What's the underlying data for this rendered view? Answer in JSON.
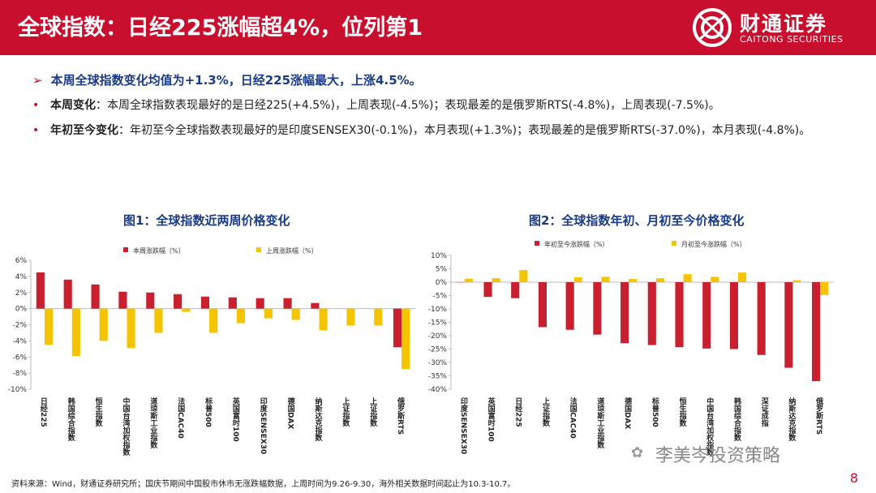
{
  "header": {
    "title": "全球指数：日经225涨幅超4%，位列第1",
    "logo_cn": "财通证券",
    "logo_en": "CAITONG SECURITIES"
  },
  "summary": {
    "headline": "本周全球指数变化均值为+1.3%，日经225涨幅最大，上涨4.5%。",
    "weekly_label": "本周变化",
    "weekly_text": "：本周全球指数表现最好的是日经225(+4.5%)，上周表现(-4.5%)；表现最差的是俄罗斯RTS(-4.8%)，上周表现(-7.5%)。",
    "ytd_label": "年初至今变化",
    "ytd_text": "：年初至今全球指数表现最好的是印度SENSEX30(-0.1%)，本月表现(+1.3%)；表现最差的是俄罗斯RTS(-37.0%)，本月表现(-4.8%)。"
  },
  "colors": {
    "red": "#c8202e",
    "gold": "#f5c400",
    "brand": "#c8102e",
    "title_blue": "#1a3a8a"
  },
  "chart_data": [
    {
      "type": "bar",
      "title": "图1：全球指数近两周价格变化",
      "categories": [
        "日经225",
        "韩国综合指数",
        "恒生指数",
        "中国台湾加权指数",
        "道琼斯工业指数",
        "法国CAC40",
        "标普500",
        "英国富时100",
        "印度SENSEX30",
        "德国DAX",
        "纳斯达克指数",
        "上证指数",
        "上证指数",
        "俄罗斯RTS"
      ],
      "series": [
        {
          "name": "本周涨跌幅（%）",
          "values": [
            4.5,
            3.6,
            3.0,
            2.1,
            2.0,
            1.8,
            1.5,
            1.4,
            1.3,
            1.3,
            0.7,
            0.0,
            0.0,
            -4.8
          ]
        },
        {
          "name": "上周涨跌幅（%）",
          "values": [
            -4.5,
            -5.9,
            -4.0,
            -4.9,
            -3.0,
            -0.4,
            -3.0,
            -1.8,
            -1.2,
            -1.4,
            -2.7,
            -2.1,
            -2.1,
            -7.5
          ]
        }
      ],
      "ylim": [
        -10,
        6
      ],
      "yticks": [
        "6%",
        "4%",
        "2%",
        "0%",
        "-2%",
        "-4%",
        "-6%",
        "-8%",
        "-10%"
      ],
      "legend": "top"
    },
    {
      "type": "bar",
      "title": "图2：全球指数年初、月初至今价格变化",
      "categories": [
        "印度SENSEX30",
        "英国富时100",
        "日经225",
        "上证指数",
        "法国CAC40",
        "道琼斯工业指数",
        "德国DAX",
        "标普500",
        "恒生指数",
        "中国台湾加权指数",
        "韩国综合指数",
        "深证成指",
        "纳斯达克指数",
        "俄罗斯RTS"
      ],
      "series": [
        {
          "name": "年初至今涨跌幅（%）",
          "values": [
            -0.1,
            -5.5,
            -6.0,
            -16.8,
            -17.8,
            -19.6,
            -22.8,
            -23.5,
            -24.3,
            -24.8,
            -25.0,
            -27.2,
            -32.0,
            -37.0
          ]
        },
        {
          "name": "月初至今涨跌幅（%）",
          "values": [
            1.3,
            1.5,
            4.5,
            0.1,
            1.8,
            2.0,
            1.2,
            1.5,
            3.0,
            2.0,
            3.6,
            0.2,
            0.7,
            -4.8
          ]
        }
      ],
      "ylim": [
        -40,
        10
      ],
      "yticks": [
        "10%",
        "5%",
        "0%",
        "-5%",
        "-10%",
        "-15%",
        "-20%",
        "-25%",
        "-30%",
        "-35%",
        "-40%"
      ],
      "legend": "top"
    }
  ],
  "footer": {
    "source": "资料来源：Wind，财通证券研究所；国庆节期间中国股市休市无涨跌幅数据，上周时间为9.26-9.30，海外相关数据时间起止为10.3-10.7。",
    "watermark": "李美岑投资策略",
    "page": "8"
  }
}
